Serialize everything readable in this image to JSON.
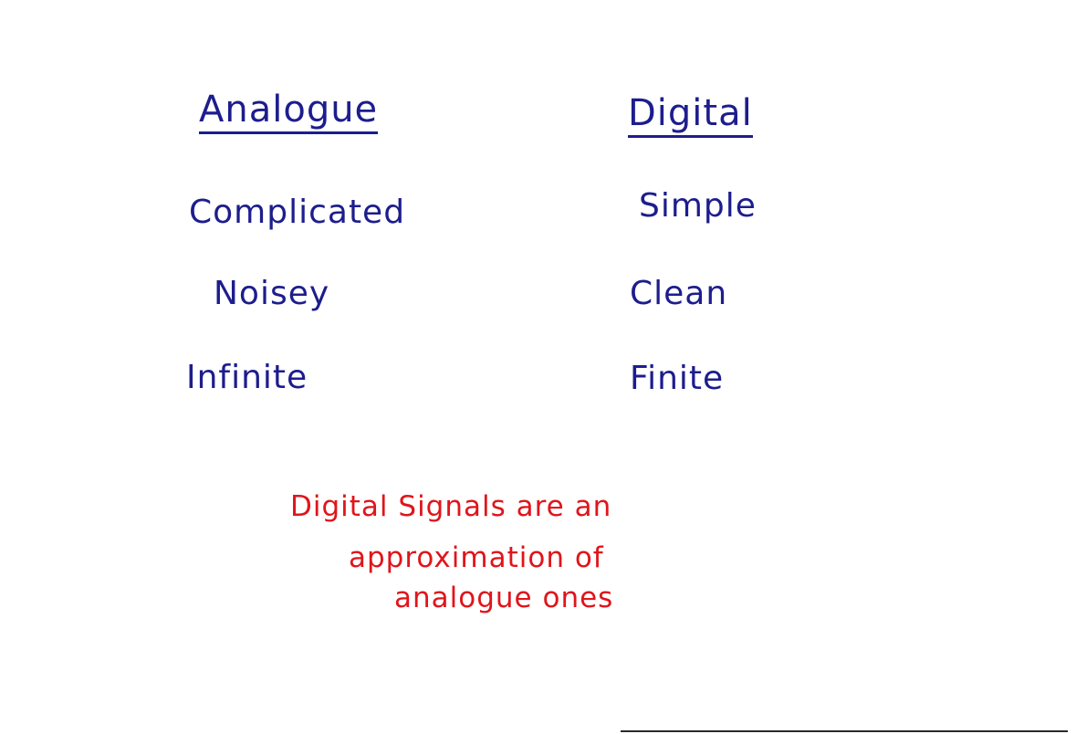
{
  "columns": [
    {
      "heading": "Analogue",
      "items": [
        "Complicated",
        "Noisey",
        "Infinite"
      ]
    },
    {
      "heading": "Digital",
      "items": [
        "Simple",
        "Clean",
        "Finite"
      ]
    }
  ],
  "note": {
    "lines": [
      "Digital Signals are an",
      "approximation of",
      "analogue ones"
    ]
  },
  "colors": {
    "ink_blue": "#1d1d8e",
    "ink_red": "#e0151b",
    "paper": "#ffffff"
  }
}
